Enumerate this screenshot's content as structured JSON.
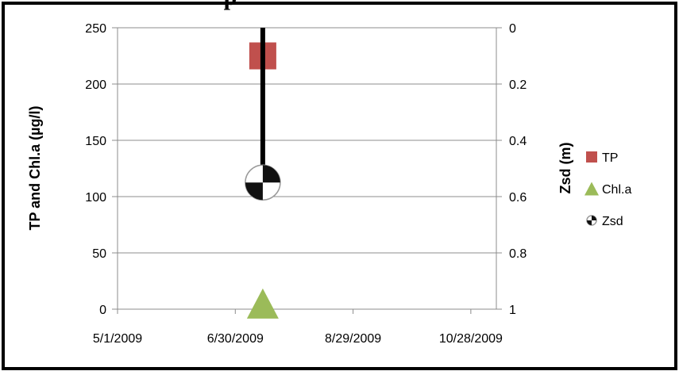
{
  "chart_data": {
    "type": "scatter",
    "title": "p",
    "x_ticks": [
      "5/1/2009",
      "6/30/2009",
      "8/29/2009",
      "10/28/2009"
    ],
    "x_range": [
      "2009-05-01",
      "2009-11-10"
    ],
    "y_left": {
      "label": "TP and Chl.a (µg/l)",
      "range": [
        0,
        250
      ],
      "ticks": [
        "0",
        "50",
        "100",
        "150",
        "200",
        "250"
      ]
    },
    "y_right": {
      "label": "Zsd (m)",
      "range": [
        0,
        1
      ],
      "reversed": true,
      "ticks": [
        "0",
        "0.2",
        "0.4",
        "0.6",
        "0.8",
        "1"
      ]
    },
    "grid": "horizontal",
    "legend_position": "right",
    "series": [
      {
        "name": "TP",
        "axis": "left",
        "marker": "square",
        "color": "#c0504d",
        "points": [
          {
            "x": "2009-07-14",
            "y": 225
          }
        ]
      },
      {
        "name": "Chl.a",
        "axis": "left",
        "marker": "triangle",
        "color": "#9bbb59",
        "points": [
          {
            "x": "2009-07-14",
            "y": 5
          }
        ]
      },
      {
        "name": "Zsd",
        "axis": "right",
        "marker": "checkered-disk",
        "color": "#000000",
        "points": [
          {
            "x": "2009-07-14",
            "y": 0.55
          }
        ]
      }
    ]
  }
}
